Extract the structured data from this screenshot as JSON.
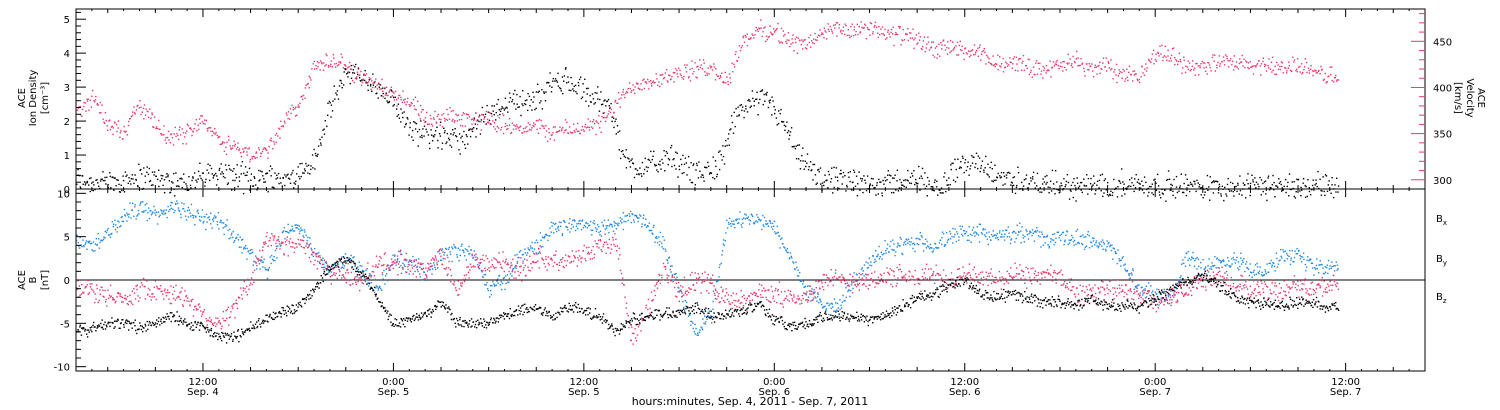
{
  "colors": {
    "black": "#000000",
    "pink": "#e8386a",
    "blue": "#1e88e5",
    "frame": "#000000"
  },
  "xaxis": {
    "title": "hours:minutes, Sep. 4, 2011 - Sep. 7, 2011",
    "range_hours": [
      4,
      89
    ],
    "ticks": [
      {
        "hour": 12,
        "time": "12:00",
        "date": "Sep. 4"
      },
      {
        "hour": 24,
        "time": "0:00",
        "date": "Sep. 5"
      },
      {
        "hour": 36,
        "time": "12:00",
        "date": "Sep. 5"
      },
      {
        "hour": 48,
        "time": "0:00",
        "date": "Sep. 6"
      },
      {
        "hour": 60,
        "time": "12:00",
        "date": "Sep. 6"
      },
      {
        "hour": 72,
        "time": "0:00",
        "date": "Sep. 7"
      },
      {
        "hour": 84,
        "time": "12:00",
        "date": "Sep. 7"
      }
    ]
  },
  "chart_data": [
    {
      "type": "scatter",
      "ylabel_left": [
        "ACE",
        "Ion Density",
        "[cm⁻³]"
      ],
      "ylabel_right": [
        "ACE",
        "Velocity",
        "[km/s]"
      ],
      "ylim_left": [
        0,
        5.3
      ],
      "ylim_right": [
        290,
        485
      ],
      "yticks_left": [
        0,
        1,
        2,
        3,
        4,
        5
      ],
      "yticks_right": [
        300,
        350,
        400,
        450
      ],
      "series": [
        {
          "axis": "left",
          "color": "#000000",
          "x": [
            4,
            6,
            8,
            9.5,
            10.5,
            11.5,
            13,
            15,
            16,
            17.5,
            19,
            20,
            21,
            22,
            23,
            24,
            25.5,
            27,
            28.5,
            29.5,
            30.5,
            31.5,
            32.5,
            33.5,
            34.5,
            35.5,
            36.5,
            37.5,
            38.5,
            39.5,
            40.5,
            41.5,
            42.5,
            43.5,
            44.5,
            45.5,
            46.5,
            47.5,
            48.5,
            49.5,
            51,
            53,
            55,
            57,
            58.5,
            60,
            62,
            64,
            66,
            68,
            70,
            72,
            74,
            76,
            78,
            80,
            82,
            83.5
          ],
          "y": [
            0.3,
            0.2,
            0.4,
            0.3,
            0.2,
            0.3,
            0.5,
            0.3,
            0.4,
            0.3,
            0.8,
            2.4,
            3.5,
            3.3,
            2.9,
            2.5,
            1.7,
            1.6,
            1.4,
            2.0,
            2.4,
            2.7,
            2.5,
            2.9,
            3.3,
            3.0,
            2.7,
            2.6,
            0.9,
            0.6,
            0.8,
            0.9,
            0.6,
            0.5,
            0.8,
            2.0,
            2.7,
            2.6,
            2.0,
            0.9,
            0.3,
            0.2,
            0.2,
            0.3,
            0.1,
            0.9,
            0.4,
            0.2,
            0.1,
            0.1,
            0.2,
            0.1,
            0.1,
            0.1,
            0.1,
            0.1,
            0.1,
            0.1
          ]
        },
        {
          "axis": "right",
          "color": "#e8386a",
          "x": [
            4,
            5,
            6,
            7,
            8,
            9,
            10,
            11,
            12,
            13,
            14,
            15,
            16,
            17,
            18,
            19,
            20,
            21,
            22,
            23,
            24,
            25,
            26,
            27,
            28,
            29,
            30,
            31,
            32,
            33,
            34,
            35,
            36,
            37,
            38,
            39,
            40,
            41,
            42,
            43,
            44,
            45,
            46,
            47,
            48,
            49,
            50,
            51,
            52,
            53,
            54,
            55,
            56,
            57,
            58,
            59,
            60,
            61,
            62,
            63,
            64,
            65,
            66,
            67,
            68,
            69,
            70,
            71,
            72,
            73,
            74,
            75,
            76,
            77,
            78,
            79,
            80,
            81,
            82,
            83,
            83.5
          ],
          "y": [
            370,
            392,
            362,
            354,
            382,
            358,
            345,
            352,
            368,
            342,
            338,
            325,
            334,
            360,
            382,
            424,
            428,
            425,
            410,
            402,
            393,
            387,
            363,
            366,
            368,
            367,
            365,
            362,
            357,
            358,
            352,
            355,
            358,
            360,
            382,
            402,
            408,
            412,
            415,
            420,
            422,
            407,
            452,
            462,
            462,
            450,
            447,
            460,
            465,
            460,
            465,
            458,
            458,
            452,
            442,
            444,
            440,
            436,
            425,
            430,
            422,
            422,
            423,
            430,
            420,
            425,
            410,
            415,
            438,
            435,
            425,
            424,
            428,
            426,
            424,
            426,
            422,
            424,
            416,
            415,
            407
          ]
        }
      ]
    },
    {
      "type": "scatter",
      "ylabel_left": [
        "ACE",
        "B",
        "[nT]"
      ],
      "ylim": [
        -10.5,
        10.5
      ],
      "yticks": [
        -10,
        -5,
        0,
        5,
        10
      ],
      "zero_line": true,
      "legend": [
        {
          "label": "B",
          "sub": "x",
          "color": "#000000"
        },
        {
          "label": "B",
          "sub": "y",
          "color": "#1e88e5"
        },
        {
          "label": "B",
          "sub": "z",
          "color": "#e8386a"
        }
      ],
      "series": [
        {
          "name": "Bx",
          "color": "#000000",
          "x": [
            4,
            5,
            6,
            7,
            8,
            9,
            10,
            11,
            12,
            13,
            14,
            15,
            16,
            17,
            18,
            19,
            20,
            21,
            22,
            23,
            24,
            25,
            26,
            27,
            28,
            29,
            30,
            31,
            32,
            33,
            34,
            35,
            36,
            37,
            38,
            39,
            40,
            41,
            42,
            43,
            44,
            45,
            46,
            47,
            48,
            49,
            50,
            51,
            52,
            53,
            54,
            55,
            56,
            57,
            58,
            59,
            60,
            61,
            62,
            63,
            64,
            65,
            66,
            67,
            68,
            69,
            70,
            71,
            72,
            73,
            74,
            75,
            76,
            77,
            78,
            79,
            80,
            81,
            82,
            83,
            83.5
          ],
          "y": [
            -6,
            -5.5,
            -5,
            -4.8,
            -5.5,
            -5,
            -4,
            -5,
            -5.5,
            -6.5,
            -6.5,
            -5.5,
            -4.5,
            -3.5,
            -3,
            -1,
            1.5,
            2.5,
            1,
            -2,
            -5,
            -4.5,
            -4,
            -2.5,
            -5,
            -5,
            -5,
            -4,
            -3.5,
            -3,
            -4.2,
            -3,
            -3.5,
            -4.2,
            -6,
            -4.5,
            -4,
            -3.8,
            -3.5,
            -3,
            -4,
            -4,
            -3.5,
            -2.5,
            -4.5,
            -5.3,
            -5,
            -4.3,
            -4,
            -4,
            -4.5,
            -4,
            -3,
            -2,
            -1.5,
            -0.5,
            0,
            -1.5,
            -2,
            -1.5,
            -2,
            -2.5,
            -2.5,
            -3,
            -2,
            -3,
            -3,
            -3,
            -2.2,
            -1,
            0,
            0.5,
            -0.5,
            -2,
            -2.5,
            -2.8,
            -2.8,
            -2.5,
            -2.6,
            -3,
            -3
          ]
        },
        {
          "name": "By",
          "color": "#1e88e5",
          "x": [
            4,
            5,
            6,
            7,
            8,
            9,
            10,
            11,
            12,
            13,
            14,
            15,
            16,
            17,
            18,
            19,
            20,
            21,
            22,
            23,
            24,
            25,
            26,
            27,
            28,
            29,
            30,
            31,
            32,
            33,
            34,
            35,
            36,
            37,
            38,
            39,
            40,
            41,
            42,
            43,
            44,
            45,
            46,
            47,
            48,
            49,
            50,
            51,
            52,
            53,
            54,
            55,
            56,
            57,
            58,
            59,
            60,
            61,
            62,
            63,
            64,
            65,
            66,
            67,
            68,
            69,
            70,
            71,
            72,
            73,
            74,
            75,
            76,
            77,
            78,
            79,
            80,
            81,
            82,
            83,
            83.5
          ],
          "y": [
            4.5,
            4,
            5.5,
            7.5,
            8.5,
            7.5,
            8.5,
            8,
            7,
            7,
            5,
            3,
            1,
            5,
            6.5,
            3,
            1.5,
            2.5,
            1,
            -1,
            2.5,
            2,
            1,
            3,
            3.5,
            3,
            -1,
            0,
            3,
            4,
            6,
            6.5,
            6.5,
            6,
            6.5,
            7.5,
            6.5,
            4,
            -1,
            -6,
            -4,
            6.5,
            7,
            7,
            6,
            2.5,
            -1,
            -3,
            -3,
            0,
            2,
            3.5,
            4,
            4.5,
            4,
            5,
            5.5,
            5.5,
            5,
            5.5,
            5.5,
            4.8,
            4.8,
            5,
            4.5,
            4,
            2,
            -1,
            -1.5,
            -2,
            3,
            1.5,
            2,
            2.5,
            1.5,
            1,
            3,
            2.5,
            1.5,
            1.5,
            1.5
          ]
        },
        {
          "name": "Bz",
          "color": "#e8386a",
          "x": [
            4,
            5,
            6,
            7,
            8,
            9,
            10,
            11,
            12,
            13,
            14,
            15,
            16,
            17,
            18,
            19,
            20,
            21,
            22,
            23,
            24,
            25,
            26,
            27,
            28,
            29,
            30,
            31,
            32,
            33,
            34,
            35,
            36,
            37,
            38,
            39,
            40,
            41,
            42,
            43,
            44,
            45,
            46,
            47,
            48,
            49,
            50,
            51,
            52,
            53,
            54,
            55,
            56,
            57,
            58,
            59,
            60,
            61,
            62,
            63,
            64,
            65,
            66,
            67,
            68,
            69,
            70,
            71,
            72,
            73,
            74,
            75,
            76,
            77,
            78,
            79,
            80,
            81,
            82,
            83,
            83.5
          ],
          "y": [
            -1,
            -1,
            -2,
            -2,
            -1,
            -1,
            -1.5,
            -2,
            -4,
            -5,
            -3,
            0,
            5,
            4,
            4.5,
            3,
            1,
            0.5,
            0,
            2,
            2,
            2,
            1,
            3,
            -1,
            2,
            2,
            2,
            1,
            3,
            2,
            3,
            3,
            4,
            4.5,
            -7,
            -3,
            1,
            -1,
            0,
            -0.5,
            -2,
            -2.5,
            -1.5,
            -1.5,
            -2,
            -2,
            0,
            0,
            0,
            0,
            0.5,
            0.5,
            0,
            1,
            0,
            0.5,
            0.5,
            0,
            0.5,
            0.5,
            0.5,
            0.5,
            -1.5,
            -1.5,
            -1,
            -1,
            -1.5,
            -2.5,
            -2,
            -1,
            0,
            0.5,
            -0.5,
            -1,
            -1,
            -1,
            -0.5,
            -1,
            -0.5,
            -0.5
          ]
        }
      ]
    }
  ]
}
